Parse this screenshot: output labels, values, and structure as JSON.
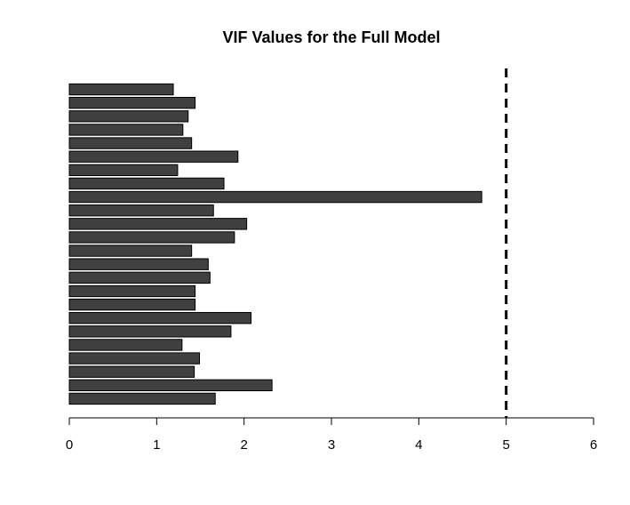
{
  "chart_data": {
    "type": "bar",
    "orientation": "horizontal",
    "title": "VIF Values for the Full Model",
    "xlabel": "",
    "ylabel": "",
    "xlim": [
      0,
      6
    ],
    "x_ticks": [
      0,
      1,
      2,
      3,
      4,
      5,
      6
    ],
    "reference_line": {
      "value": 5,
      "style": "dashed"
    },
    "values": [
      1.67,
      2.32,
      1.43,
      1.49,
      1.29,
      1.85,
      2.08,
      1.44,
      1.44,
      1.61,
      1.59,
      1.4,
      1.89,
      2.03,
      1.65,
      4.72,
      1.77,
      1.24,
      1.93,
      1.4,
      1.3,
      1.36,
      1.44,
      1.19
    ],
    "bar_color": "#404040",
    "grid": false
  }
}
